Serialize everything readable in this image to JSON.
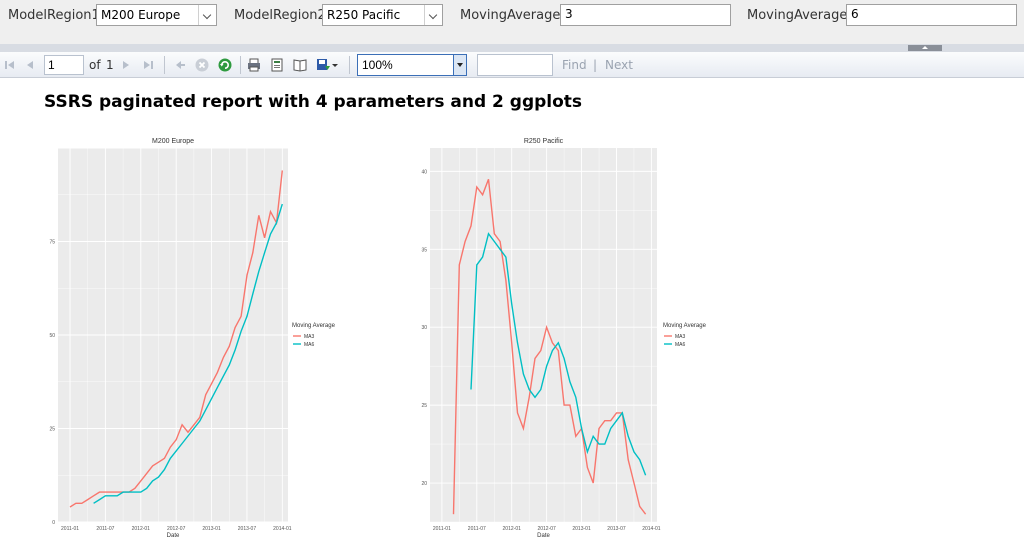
{
  "parameters": {
    "region1_label": "ModelRegion1",
    "region1_value": "M200 Europe",
    "region2_label": "ModelRegion2",
    "region2_value": "R250 Pacific",
    "ma1_label": "MovingAverage1",
    "ma1_value": "3",
    "ma2_label": "MovingAverage2",
    "ma2_value": "6"
  },
  "toolbar": {
    "page_current": "1",
    "of_label": "of",
    "page_total": "1",
    "zoom_value": "100%",
    "find_label": "Find",
    "separator": "|",
    "next_label": "Next"
  },
  "report": {
    "title": "SSRS paginated report with 4 parameters and 2 ggplots"
  },
  "colors": {
    "ma3": "#f8766d",
    "ma6": "#00bfc4",
    "panel_bg": "#ebebeb",
    "grid": "#ffffff"
  },
  "chart_data": [
    {
      "type": "line",
      "title": "M200 Europe",
      "xlabel": "Date",
      "ylabel": "",
      "x_ticks": [
        "2011-01",
        "2011-07",
        "2012-01",
        "2012-07",
        "2013-01",
        "2013-07",
        "2014-01"
      ],
      "x_range": [
        2010.83,
        2014.08
      ],
      "y_ticks": [
        "0",
        "25",
        "50",
        "75"
      ],
      "ylim": [
        0,
        100
      ],
      "legend_title": "Moving Average",
      "legend_position": "right",
      "grid": true,
      "x": [
        2011.0,
        2011.083,
        2011.167,
        2011.25,
        2011.333,
        2011.417,
        2011.5,
        2011.583,
        2011.667,
        2011.75,
        2011.833,
        2011.917,
        2012.0,
        2012.083,
        2012.167,
        2012.25,
        2012.333,
        2012.417,
        2012.5,
        2012.583,
        2012.667,
        2012.75,
        2012.833,
        2012.917,
        2013.0,
        2013.083,
        2013.167,
        2013.25,
        2013.333,
        2013.417,
        2013.5,
        2013.583,
        2013.667,
        2013.75,
        2013.833,
        2013.917,
        2014.0
      ],
      "series": [
        {
          "name": "MA3",
          "values": [
            4,
            5,
            5,
            6,
            7,
            8,
            8,
            8,
            8,
            8,
            8,
            9,
            11,
            13,
            15,
            16,
            17,
            20,
            22,
            26,
            24,
            26,
            28,
            34,
            37,
            40,
            44,
            47,
            52,
            55,
            66,
            72,
            82,
            76,
            83,
            80,
            94
          ]
        },
        {
          "name": "MA6",
          "values": [
            null,
            null,
            null,
            null,
            5,
            6,
            7,
            7,
            7,
            8,
            8,
            8,
            8,
            9,
            11,
            12,
            14,
            17,
            19,
            21,
            23,
            25,
            27,
            30,
            33,
            36,
            39,
            42,
            46,
            51,
            55,
            61,
            67,
            72,
            77,
            80,
            85
          ]
        }
      ]
    },
    {
      "type": "line",
      "title": "R250 Pacific",
      "xlabel": "Date",
      "ylabel": "",
      "x_ticks": [
        "2011-01",
        "2011-07",
        "2012-01",
        "2012-07",
        "2013-01",
        "2013-07",
        "2014-01"
      ],
      "x_range": [
        2010.83,
        2014.08
      ],
      "y_ticks": [
        "20",
        "25",
        "30",
        "35",
        "40"
      ],
      "ylim": [
        17.5,
        41.5
      ],
      "legend_title": "Moving Average",
      "legend_position": "right",
      "grid": true,
      "x": [
        2011.167,
        2011.25,
        2011.333,
        2011.417,
        2011.5,
        2011.583,
        2011.667,
        2011.75,
        2011.833,
        2011.917,
        2012.0,
        2012.083,
        2012.167,
        2012.25,
        2012.333,
        2012.417,
        2012.5,
        2012.583,
        2012.667,
        2012.75,
        2012.833,
        2012.917,
        2013.0,
        2013.083,
        2013.167,
        2013.25,
        2013.333,
        2013.417,
        2013.5,
        2013.583,
        2013.667,
        2013.75,
        2013.833,
        2013.917,
        2014.0
      ],
      "series": [
        {
          "name": "MA3",
          "values": [
            18,
            34,
            35.5,
            36.5,
            39,
            38.5,
            39.5,
            36,
            35.5,
            33,
            29,
            24.5,
            23.5,
            25.5,
            28,
            28.5,
            30,
            29,
            28.5,
            25,
            25,
            23,
            23.5,
            21,
            20,
            23.5,
            24,
            24,
            24.5,
            24.5,
            21.5,
            20,
            18.5,
            18,
            null
          ]
        },
        {
          "name": "MA6",
          "values": [
            null,
            null,
            null,
            26,
            34,
            34.5,
            36,
            35.5,
            35,
            34.5,
            31.5,
            29,
            27,
            26,
            25.5,
            26,
            27.5,
            28.5,
            29,
            28,
            26.5,
            25.5,
            23.5,
            22,
            23,
            22.5,
            22.5,
            23.5,
            24,
            24.5,
            23,
            22,
            21.5,
            20.5,
            null
          ]
        }
      ]
    }
  ]
}
